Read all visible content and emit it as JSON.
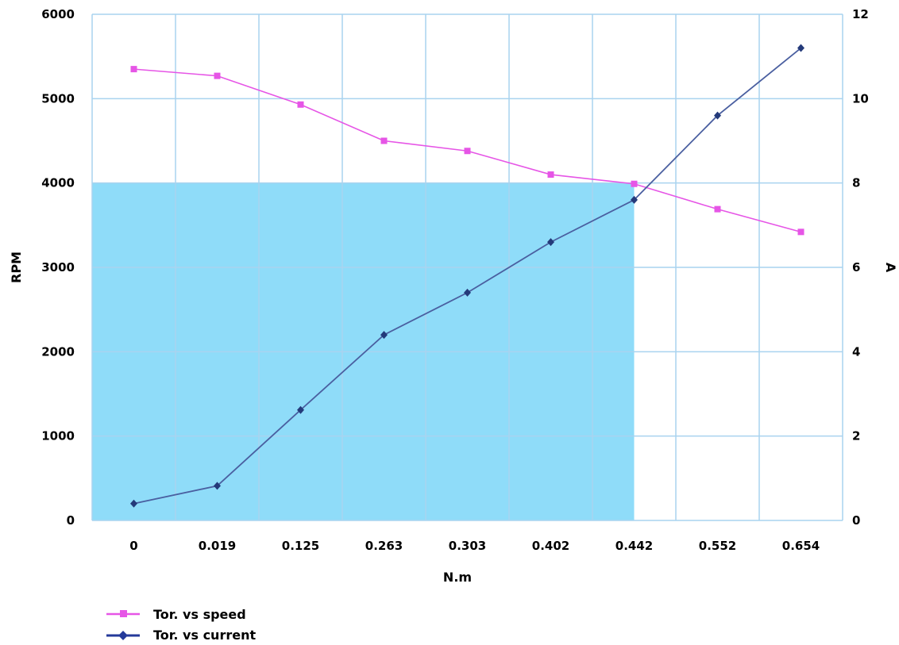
{
  "chart_data": {
    "type": "line",
    "title": "",
    "categories": [
      "0",
      "0.019",
      "0.125",
      "0.263",
      "0.303",
      "0.402",
      "0.442",
      "0.552",
      "0.654"
    ],
    "xlabel": "N.m",
    "ylabel": "RPM",
    "y2label": "A",
    "ylim": [
      0,
      6000
    ],
    "y2lim": [
      0,
      12
    ],
    "yticks": [
      "0",
      "1000",
      "2000",
      "3000",
      "4000",
      "5000",
      "6000"
    ],
    "y2ticks": [
      "0",
      "2",
      "4",
      "6",
      "8",
      "10",
      "12"
    ],
    "grid": true,
    "legend_position": "bottom-left",
    "shaded_region": {
      "x_end": "0.442",
      "y_top": 4000,
      "color": "#8fdcf9"
    },
    "series": [
      {
        "name": "Tor. vs speed",
        "axis": "left",
        "color": "#e655e6",
        "marker": "square",
        "values": [
          5350,
          5270,
          4930,
          4500,
          4380,
          4100,
          3990,
          3690,
          3420
        ]
      },
      {
        "name": "Tor. vs current",
        "axis": "right",
        "color": "#4a5fa0",
        "marker": "diamond",
        "values": [
          0.4,
          0.82,
          2.62,
          4.4,
          5.4,
          6.6,
          7.6,
          9.6,
          11.2
        ]
      }
    ]
  }
}
